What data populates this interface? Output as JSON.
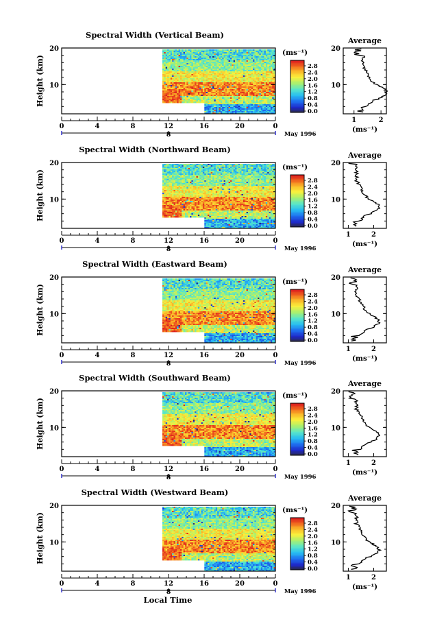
{
  "x_axis_label": "Local Time",
  "panel_unit_label": "(ms⁻¹)",
  "chart_data": [
    {
      "type": "heatmap",
      "title": "Spectral Width (Vertical Beam)",
      "ylabel": "Height (km)",
      "ylim": [
        2,
        20
      ],
      "yticks": [
        "10",
        "20"
      ],
      "xticks": [
        "0",
        "4",
        "8",
        "12",
        "16",
        "20",
        "0"
      ],
      "date_mark": "8",
      "date_label": "May 1996",
      "colorbar": {
        "label": "(ms⁻¹)",
        "ticks": [
          "2.8",
          "2.4",
          "2.0",
          "1.6",
          "1.2",
          "0.8",
          "0.4",
          "0.0"
        ]
      },
      "profile": {
        "title": "Average",
        "xlabel": "(ms⁻¹)",
        "xticks": [
          "1",
          "2"
        ],
        "xlim": [
          0.6,
          2.2
        ],
        "yticks": [
          "10",
          "20"
        ]
      }
    },
    {
      "type": "heatmap",
      "title": "Spectral Width (Northward Beam)",
      "ylabel": "Height (km)",
      "ylim": [
        2,
        20
      ],
      "yticks": [
        "10",
        "20"
      ],
      "xticks": [
        "0",
        "4",
        "8",
        "12",
        "16",
        "20",
        "0"
      ],
      "date_mark": "8",
      "date_label": "May 1996",
      "colorbar": {
        "label": "(ms⁻¹)",
        "ticks": [
          "2.8",
          "2.4",
          "2.0",
          "1.6",
          "1.2",
          "0.8",
          "0.4",
          "0.0"
        ]
      },
      "profile": {
        "title": "Average",
        "xlabel": "(ms⁻¹)",
        "xticks": [
          "1",
          "2"
        ],
        "xlim": [
          0.8,
          2.5
        ],
        "yticks": [
          "10",
          "20"
        ]
      }
    },
    {
      "type": "heatmap",
      "title": "Spectral Width (Eastward Beam)",
      "ylabel": "Height (km)",
      "ylim": [
        2,
        20
      ],
      "yticks": [
        "10",
        "20"
      ],
      "xticks": [
        "0",
        "4",
        "8",
        "12",
        "16",
        "20",
        "0"
      ],
      "date_mark": "8",
      "date_label": "May 1996",
      "colorbar": {
        "label": "(ms⁻¹)",
        "ticks": [
          "2.8",
          "2.4",
          "2.0",
          "1.6",
          "1.2",
          "0.8",
          "0.4",
          "0.0"
        ]
      },
      "profile": {
        "title": "Average",
        "xlabel": "(ms⁻¹)",
        "xticks": [
          "1",
          "2"
        ],
        "xlim": [
          0.8,
          2.5
        ],
        "yticks": [
          "10",
          "20"
        ]
      }
    },
    {
      "type": "heatmap",
      "title": "Spectral Width (Southward Beam)",
      "ylabel": "Height (km)",
      "ylim": [
        2,
        20
      ],
      "yticks": [
        "10",
        "20"
      ],
      "xticks": [
        "0",
        "4",
        "8",
        "12",
        "16",
        "20",
        "0"
      ],
      "date_mark": "8",
      "date_label": "May 1996",
      "colorbar": {
        "label": "(ms⁻¹)",
        "ticks": [
          "2.8",
          "2.4",
          "2.0",
          "1.6",
          "1.2",
          "0.8",
          "0.4",
          "0.0"
        ]
      },
      "profile": {
        "title": "Average",
        "xlabel": "(ms⁻¹)",
        "xticks": [
          "1",
          "2"
        ],
        "xlim": [
          0.8,
          2.5
        ],
        "yticks": [
          "10",
          "20"
        ]
      }
    },
    {
      "type": "heatmap",
      "title": "Spectral Width (Westward Beam)",
      "ylabel": "Height (km)",
      "ylim": [
        2,
        20
      ],
      "yticks": [
        "10",
        "20"
      ],
      "xticks": [
        "0",
        "4",
        "8",
        "12",
        "16",
        "20",
        "0"
      ],
      "date_mark": "8",
      "date_label": "May 1996",
      "colorbar": {
        "label": "(ms⁻¹)",
        "ticks": [
          "2.8",
          "2.4",
          "2.0",
          "1.6",
          "1.2",
          "0.8",
          "0.4",
          "0.0"
        ]
      },
      "profile": {
        "title": "Average",
        "xlabel": "(ms⁻¹)",
        "xticks": [
          "1",
          "2"
        ],
        "xlim": [
          0.8,
          2.5
        ],
        "yticks": [
          "10",
          "20"
        ]
      }
    }
  ]
}
